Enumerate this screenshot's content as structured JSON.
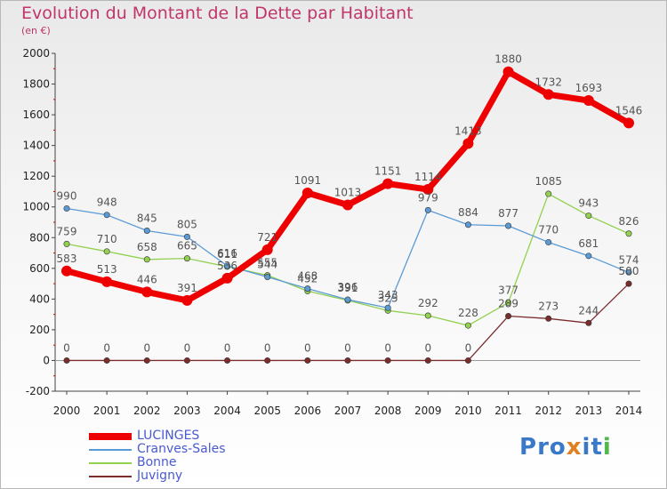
{
  "header": {
    "title": "Evolution du Montant de la Dette par Habitant",
    "unit": "(en €)"
  },
  "logo": {
    "text": "Proxiti",
    "letters": [
      "P",
      "r",
      "o",
      "x",
      "i",
      "t",
      "i"
    ],
    "colors": [
      "#3a78c8",
      "#3a78c8",
      "#3a78c8",
      "#e08020",
      "#3a78c8",
      "#3a78c8",
      "#50b848"
    ]
  },
  "chart_data": {
    "type": "line",
    "title": "Evolution du Montant de la Dette par Habitant",
    "ylabel": "(en €)",
    "xlabel": "",
    "x": [
      "2000",
      "2001",
      "2002",
      "2003",
      "2004",
      "2005",
      "2006",
      "2007",
      "2008",
      "2009",
      "2010",
      "2011",
      "2012",
      "2013",
      "2014"
    ],
    "ylim": [
      -200,
      2000
    ],
    "yticks": [
      -200,
      0,
      200,
      400,
      600,
      800,
      1000,
      1200,
      1400,
      1600,
      1800,
      2000
    ],
    "grid": false,
    "legend": "bottom-left",
    "series": [
      {
        "name": "LUCINGES",
        "color": "#ee0000",
        "values": [
          583,
          513,
          446,
          391,
          536,
          721,
          1091,
          1013,
          1151,
          1114,
          1413,
          1880,
          1732,
          1693,
          1546
        ]
      },
      {
        "name": "Cranves-Sales",
        "color": "#5b9bd5",
        "values": [
          990,
          948,
          845,
          805,
          616,
          544,
          468,
          396,
          343,
          979,
          884,
          877,
          770,
          681,
          574
        ]
      },
      {
        "name": "Bonne",
        "color": "#92d050",
        "values": [
          759,
          710,
          658,
          665,
          611,
          555,
          452,
          391,
          325,
          292,
          228,
          377,
          1085,
          943,
          826
        ]
      },
      {
        "name": "Juvigny",
        "color": "#7b2c2c",
        "values": [
          0,
          0,
          0,
          0,
          0,
          0,
          0,
          0,
          0,
          0,
          0,
          289,
          273,
          244,
          500
        ]
      }
    ]
  }
}
